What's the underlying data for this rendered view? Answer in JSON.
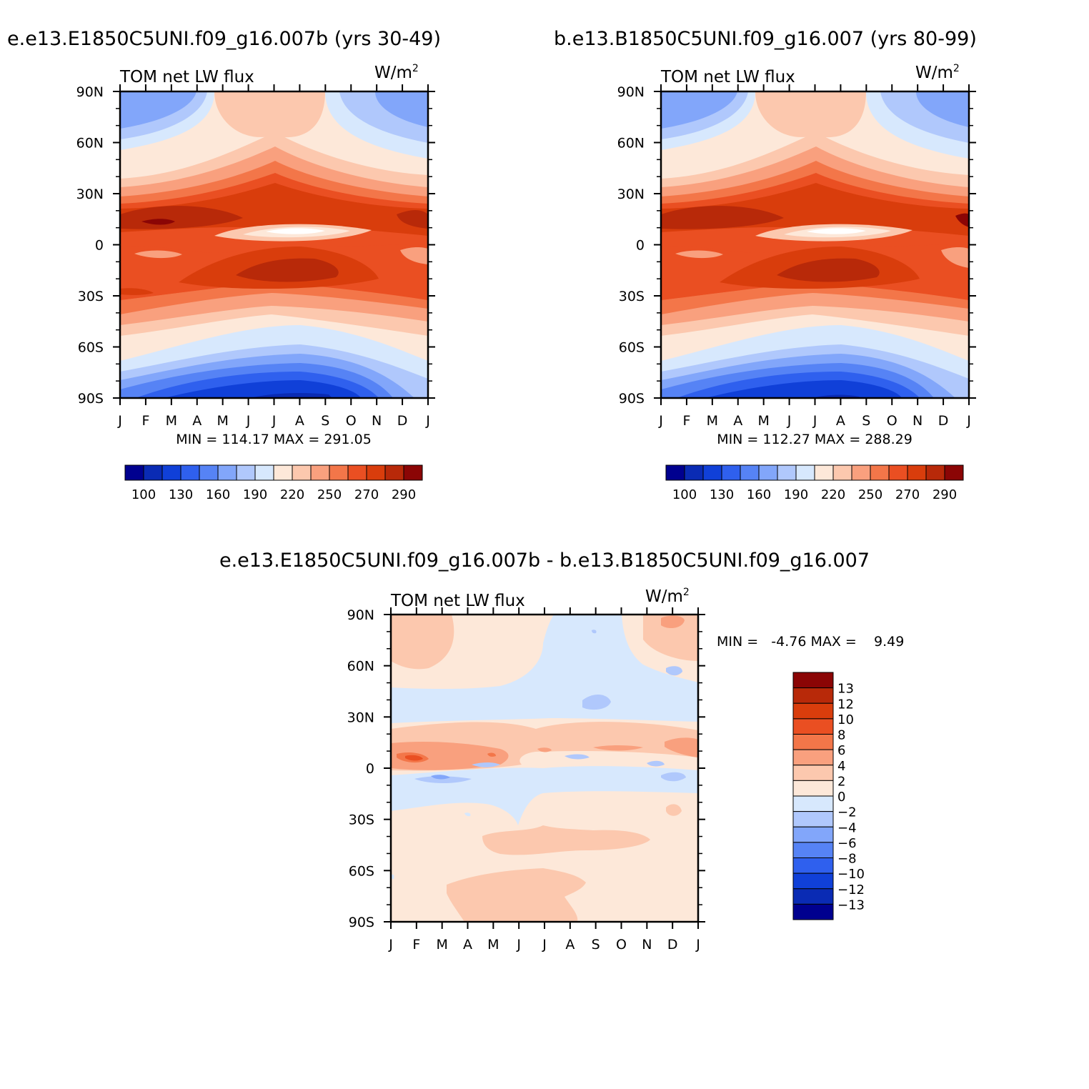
{
  "panels": {
    "left_title": "e.e13.E1850C5UNI.f09_g16.007b (yrs 30-49)",
    "right_title": "b.e13.B1850C5UNI.f09_g16.007 (yrs 80-99)",
    "diff_title": "e.e13.E1850C5UNI.f09_g16.007b - b.e13.B1850C5UNI.f09_g16.007"
  },
  "variable": {
    "name": "TOM net LW flux",
    "units_base": "W/m",
    "units_exp": "2"
  },
  "stats": {
    "left": "MIN = 114.17 MAX = 291.05",
    "right": "MIN = 112.27 MAX = 288.29",
    "diff": "MIN =   -4.76 MAX =    9.49"
  },
  "colorbars": {
    "abs_levels": [
      "100",
      "130",
      "160",
      "190",
      "220",
      "250",
      "270",
      "290"
    ],
    "abs_colors": [
      "#00008f",
      "#0a2bb4",
      "#1040d8",
      "#2f60ee",
      "#5683f5",
      "#82a6fa",
      "#b0c8fc",
      "#d7e8fd",
      "#fde8d9",
      "#fcc8ae",
      "#f9a07e",
      "#f37649",
      "#ea4f22",
      "#d93d0c",
      "#b82909",
      "#8b0505"
    ],
    "diff_levels": [
      "13",
      "12",
      "10",
      "8",
      "6",
      "4",
      "2",
      "0",
      "-2",
      "-4",
      "-6",
      "-8",
      "-10",
      "-12",
      "-13"
    ],
    "diff_colors": [
      "#8b0505",
      "#b82909",
      "#d93d0c",
      "#ea4f22",
      "#f37649",
      "#f9a07e",
      "#fcc8ae",
      "#fde8d9",
      "#d7e8fd",
      "#b0c8fc",
      "#82a6fa",
      "#5683f5",
      "#2f60ee",
      "#1040d8",
      "#0a2bb4",
      "#00008f"
    ]
  },
  "chart_data": [
    {
      "type": "heatmap",
      "title": "TOM net LW flux",
      "panel_title": "e.e13.E1850C5UNI.f09_g16.007b (yrs 30-49)",
      "units": "W/m2",
      "xlabel": "",
      "ylabel": "",
      "x_ticks": [
        "J",
        "F",
        "M",
        "A",
        "M",
        "J",
        "J",
        "A",
        "S",
        "O",
        "N",
        "D",
        "J"
      ],
      "y_ticks": [
        "90N",
        "60N",
        "30N",
        "0",
        "30S",
        "60S",
        "90S"
      ],
      "ylim": [
        -90,
        90
      ],
      "min": 114.17,
      "max": 291.05,
      "levels": [
        100,
        115,
        130,
        145,
        160,
        175,
        190,
        205,
        220,
        235,
        250,
        260,
        270,
        280,
        290
      ]
    },
    {
      "type": "heatmap",
      "title": "TOM net LW flux",
      "panel_title": "b.e13.B1850C5UNI.f09_g16.007 (yrs 80-99)",
      "units": "W/m2",
      "xlabel": "",
      "ylabel": "",
      "x_ticks": [
        "J",
        "F",
        "M",
        "A",
        "M",
        "J",
        "J",
        "A",
        "S",
        "O",
        "N",
        "D",
        "J"
      ],
      "y_ticks": [
        "90N",
        "60N",
        "30N",
        "0",
        "30S",
        "60S",
        "90S"
      ],
      "ylim": [
        -90,
        90
      ],
      "min": 112.27,
      "max": 288.29,
      "levels": [
        100,
        115,
        130,
        145,
        160,
        175,
        190,
        205,
        220,
        235,
        250,
        260,
        270,
        280,
        290
      ]
    },
    {
      "type": "heatmap",
      "title": "TOM net LW flux",
      "panel_title": "e.e13.E1850C5UNI.f09_g16.007b - b.e13.B1850C5UNI.f09_g16.007",
      "units": "W/m2",
      "xlabel": "",
      "ylabel": "",
      "x_ticks": [
        "J",
        "F",
        "M",
        "A",
        "M",
        "J",
        "J",
        "A",
        "S",
        "O",
        "N",
        "D",
        "J"
      ],
      "y_ticks": [
        "90N",
        "60N",
        "30N",
        "0",
        "30S",
        "60S",
        "90S"
      ],
      "ylim": [
        -90,
        90
      ],
      "min": -4.76,
      "max": 9.49,
      "levels": [
        -13,
        -12,
        -10,
        -8,
        -6,
        -4,
        -2,
        0,
        2,
        4,
        6,
        8,
        10,
        12,
        13
      ]
    }
  ]
}
